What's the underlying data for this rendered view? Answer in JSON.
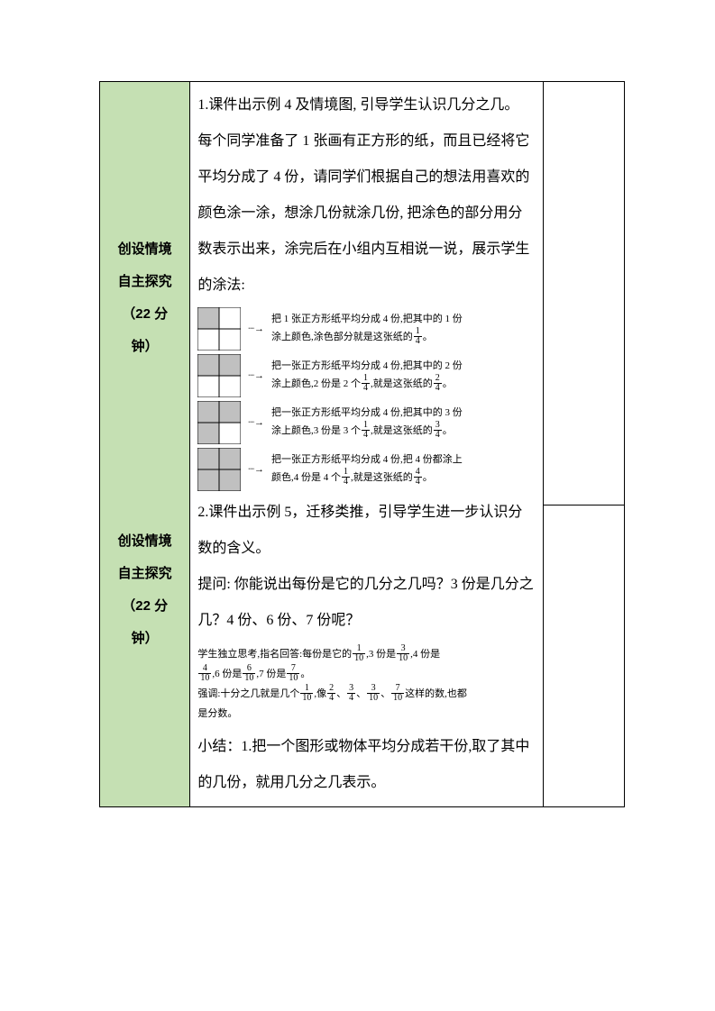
{
  "left1": {
    "line1": "创设情境",
    "line2": "自主探究",
    "line3": "（22 分",
    "line4": "钟）"
  },
  "left2": {
    "line1": "创设情境",
    "line2": "自主探究",
    "line3": "（22 分",
    "line4": "钟）"
  },
  "intro1": "1.课件出示例 4 及情境图,  引导学生认识几分之几。",
  "intro2": "每个同学准备了 1 张画有正方形的纸，而且已经将它平均分成了 4 份，请同学们根据自己的想法用喜欢的颜色涂一涂，想涂几份就涂几份, 把涂色的部分用分数表示出来，涂完后在小组内互相说一说，展示学生的涂法:",
  "examples": [
    {
      "textA": "把 1 张正方形纸平均分成 4 份,把其中的 1 份",
      "textB_pre": "涂上颜色,涂色部分就是这张纸的",
      "frac_n": "1",
      "frac_d": "4",
      "textB_post": "。",
      "shaded": [
        0
      ],
      "square_fill": "#c0c0c0",
      "square_stroke": "#000000"
    },
    {
      "textA": "把一张正方形纸平均分成 4 份,把其中的 2 份",
      "textB_pre": "涂上颜色,2 份是 2 个",
      "frac1_n": "1",
      "frac1_d": "4",
      "textB_mid": ",就是这张纸的",
      "frac2_n": "2",
      "frac2_d": "4",
      "textB_post": "。",
      "shaded": [
        0,
        1
      ],
      "square_fill": "#c0c0c0",
      "square_stroke": "#000000"
    },
    {
      "textA": "把一张正方形纸平均分成 4 份,把其中的 3 份",
      "textB_pre": "涂上颜色,3 份是 3 个",
      "frac1_n": "1",
      "frac1_d": "4",
      "textB_mid": ",就是这张纸的",
      "frac2_n": "3",
      "frac2_d": "4",
      "textB_post": "。",
      "shaded": [
        0,
        1,
        2
      ],
      "square_fill": "#c0c0c0",
      "square_stroke": "#000000"
    },
    {
      "textA": "把一张正方形纸平均分成 4 份,把 4 份都涂上",
      "textB_pre": "颜色,4 份是 4 个",
      "frac1_n": "1",
      "frac1_d": "4",
      "textB_mid": ",就是这张纸的",
      "frac2_n": "4",
      "frac2_d": "4",
      "textB_post": "。",
      "shaded": [
        0,
        1,
        2,
        3
      ],
      "square_fill": "#c0c0c0",
      "square_stroke": "#000000"
    }
  ],
  "part2": "2.课件出示例 5，迁移类推，引导学生进一步认识分数的含义。",
  "question": "提问: 你能说出每份是它的几分之几吗？3 份是几分之几？4 份、6 份、7 份呢？",
  "answer": {
    "l1_pre": "学生独立思考,指名回答:每份是它的",
    "f1_n": "1",
    "f1_d": "10",
    "l1_mid1": ",3 份是",
    "f2_n": "3",
    "f2_d": "10",
    "l1_mid2": ",4 份是",
    "f3_n": "4",
    "f3_d": "10",
    "l2_pre": ",6 份是",
    "f4_n": "6",
    "f4_d": "10",
    "l2_mid": ",7 份是",
    "f5_n": "7",
    "f5_d": "10",
    "l2_post": "。",
    "l3_pre": "强调:十分之几就是几个",
    "f6_n": "1",
    "f6_d": "10",
    "l3_mid1": ",像",
    "f7_n": "2",
    "f7_d": "4",
    "l3_c1": "、",
    "f8_n": "3",
    "f8_d": "4",
    "l3_c2": "、",
    "f9_n": "3",
    "f9_d": "10",
    "l3_c3": "、",
    "f10_n": "7",
    "f10_d": "10",
    "l3_post": "这样的数,也都",
    "l4": "是分数。"
  },
  "summary": "小结：1.把一个图形或物体平均分成若干份,取了其中的几份，就用几分之几表示。"
}
